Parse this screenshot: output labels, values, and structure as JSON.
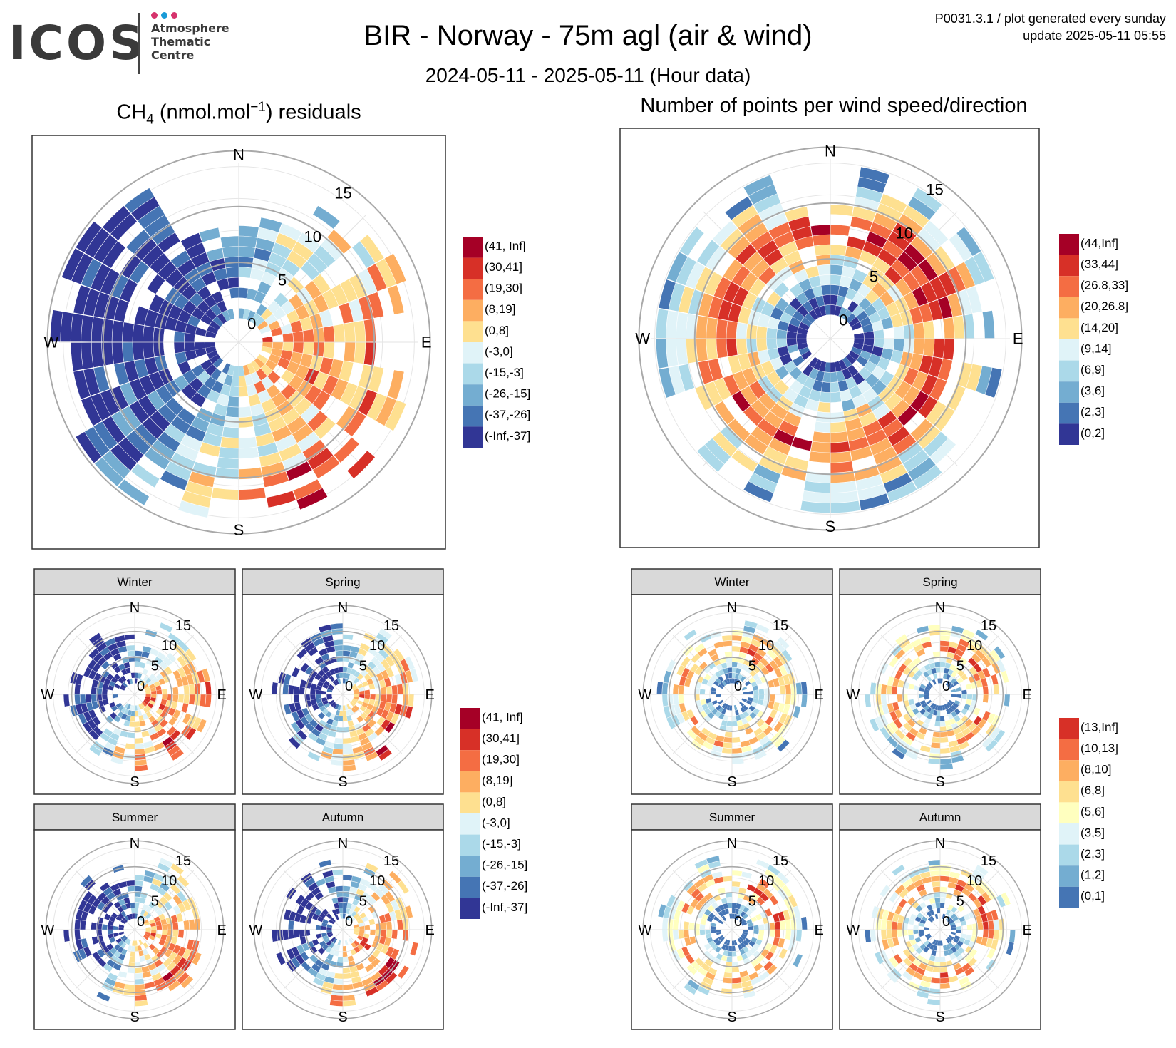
{
  "logo": {
    "name": "ICOS",
    "line1": "Atmosphere",
    "line2": "Thematic",
    "line3": "Centre",
    "dot_colors": [
      "#d6336c",
      "#1a9bd7",
      "#d6336c"
    ]
  },
  "header": {
    "title": "BIR - Norway - 75m agl (air & wind)",
    "subtitle": "2024-05-11 - 2025-05-11 (Hour data)",
    "meta_line1": "P0031.3.1 / plot generated every sunday",
    "meta_line2": "update  2025-05-11 05:55"
  },
  "left_panel": {
    "title_main": "CH",
    "title_sub": "4",
    "title_unit": " (nmol.mol",
    "title_sup": "−1",
    "title_tail": ") residuals"
  },
  "right_panel": {
    "title": "Number of points per wind speed/direction"
  },
  "compass": {
    "n": "N",
    "e": "E",
    "s": "S",
    "w": "W"
  },
  "ring_labels": [
    "0",
    "5",
    "10",
    "15"
  ],
  "facets": [
    "Winter",
    "Spring",
    "Summer",
    "Autumn"
  ],
  "chart_data": [
    {
      "type": "heatmap",
      "subtype": "polar",
      "title": "CH4 (nmol.mol-1) residuals",
      "legend": [
        {
          "label": "(41, Inf]",
          "color": "#a50026"
        },
        {
          "label": "(30,41]",
          "color": "#d73027"
        },
        {
          "label": "(19,30]",
          "color": "#f46d43"
        },
        {
          "label": "(8,19]",
          "color": "#fdae61"
        },
        {
          "label": "(0,8]",
          "color": "#fee090"
        },
        {
          "label": "(-3,0]",
          "color": "#e0f3f8"
        },
        {
          "label": "(-15,-3]",
          "color": "#abd9e9"
        },
        {
          "label": "(-26,-15]",
          "color": "#74add1"
        },
        {
          "label": "(-37,-26]",
          "color": "#4575b4"
        },
        {
          "label": "(-Inf,-37]",
          "color": "#313695"
        }
      ]
    },
    {
      "type": "heatmap",
      "subtype": "polar",
      "title": "Number of points per wind speed/direction",
      "legend": [
        {
          "label": "(44,Inf]",
          "color": "#a50026"
        },
        {
          "label": "(33,44]",
          "color": "#d73027"
        },
        {
          "label": "(26.8,33]",
          "color": "#f46d43"
        },
        {
          "label": "(20,26.8]",
          "color": "#fdae61"
        },
        {
          "label": "(14,20]",
          "color": "#fee090"
        },
        {
          "label": "(9,14]",
          "color": "#e0f3f8"
        },
        {
          "label": "(6,9]",
          "color": "#abd9e9"
        },
        {
          "label": "(3,6]",
          "color": "#74add1"
        },
        {
          "label": "(2,3]",
          "color": "#4575b4"
        },
        {
          "label": "(0,2]",
          "color": "#313695"
        }
      ]
    },
    {
      "type": "heatmap",
      "subtype": "polar-facets",
      "facets": [
        "Winter",
        "Spring",
        "Summer",
        "Autumn"
      ],
      "legend": [
        {
          "label": "(41, Inf]",
          "color": "#a50026"
        },
        {
          "label": "(30,41]",
          "color": "#d73027"
        },
        {
          "label": "(19,30]",
          "color": "#f46d43"
        },
        {
          "label": "(8,19]",
          "color": "#fdae61"
        },
        {
          "label": "(0,8]",
          "color": "#fee090"
        },
        {
          "label": "(-3,0]",
          "color": "#e0f3f8"
        },
        {
          "label": "(-15,-3]",
          "color": "#abd9e9"
        },
        {
          "label": "(-26,-15]",
          "color": "#74add1"
        },
        {
          "label": "(-37,-26]",
          "color": "#4575b4"
        },
        {
          "label": "(-Inf,-37]",
          "color": "#313695"
        }
      ]
    },
    {
      "type": "heatmap",
      "subtype": "polar-facets",
      "facets": [
        "Winter",
        "Spring",
        "Summer",
        "Autumn"
      ],
      "legend": [
        {
          "label": "(13,Inf]",
          "color": "#d73027"
        },
        {
          "label": "(10,13]",
          "color": "#f46d43"
        },
        {
          "label": "(8,10]",
          "color": "#fdae61"
        },
        {
          "label": "(6,8]",
          "color": "#fee090"
        },
        {
          "label": "(5,6]",
          "color": "#ffffbf"
        },
        {
          "label": "(3,5]",
          "color": "#e0f3f8"
        },
        {
          "label": "(2,3]",
          "color": "#abd9e9"
        },
        {
          "label": "(1,2]",
          "color": "#74add1"
        },
        {
          "label": "(0,1]",
          "color": "#4575b4"
        }
      ]
    }
  ]
}
